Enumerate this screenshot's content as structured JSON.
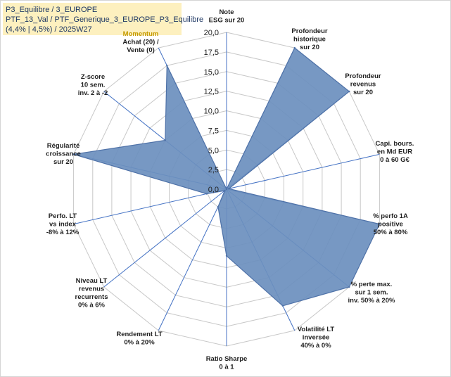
{
  "info_box": {
    "line1": "P3_Equilibre / 3_EUROPE",
    "line2": "PTF_13_Val / PTF_Generique_3_EUROPE_P3_Equilibre",
    "line3": "(4,4% | 4,5%) / 2025W27"
  },
  "chart_data": {
    "type": "radar",
    "rmin": 0,
    "rmax": 20,
    "ticks": [
      "0,0",
      "2,5",
      "5,0",
      "7,5",
      "10,0",
      "12,5",
      "15,0",
      "17,5",
      "20,0"
    ],
    "grid": true,
    "axes": [
      {
        "lines": [
          "Note",
          "ESG sur 20"
        ],
        "value": 0
      },
      {
        "lines": [
          "Profondeur",
          "historique",
          "sur 20"
        ],
        "value": 20
      },
      {
        "lines": [
          "Profondeur",
          "revenus",
          "sur 20"
        ],
        "value": 20
      },
      {
        "lines": [
          "Capi. bours.",
          "en Md EUR",
          "0 à 60 G€"
        ],
        "value": 0.3
      },
      {
        "lines": [
          "% perfo 1A",
          "positive",
          "50% à 80%"
        ],
        "value": 20
      },
      {
        "lines": [
          "% perte max.",
          "sur 1 sem.",
          "inv. 50% à 20%"
        ],
        "value": 20
      },
      {
        "lines": [
          "Volatilité LT",
          "inversée",
          "40% à 0%"
        ],
        "value": 16.5
      },
      {
        "lines": [
          "Ratio Sharpe",
          "0 à 1"
        ],
        "value": 8.5
      },
      {
        "lines": [
          "Rendement LT",
          "0% à 20%"
        ],
        "value": 2.5
      },
      {
        "lines": [
          "Niveau LT",
          "revenus",
          "recurrents",
          "0% à 6%"
        ],
        "value": 0.3
      },
      {
        "lines": [
          "Perfo. LT",
          "vs index",
          "-8% à 12%"
        ],
        "value": 2.6
      },
      {
        "lines": [
          "Régularité",
          "croissance",
          "sur 20"
        ],
        "value": 20
      },
      {
        "lines": [
          "Z-score",
          "10 sem.",
          "inv. 2 à -2"
        ],
        "value": 10
      },
      {
        "lines": [
          "Momentum",
          "Achat (20) /",
          "Vente (0)"
        ],
        "value": 17.5
      }
    ],
    "colors": {
      "fill": "#6b8fbe",
      "stroke": "#4f72a8",
      "axis": "#4472c4",
      "grid": "#c8c8c8",
      "momentum_label": "#c59a00"
    }
  }
}
